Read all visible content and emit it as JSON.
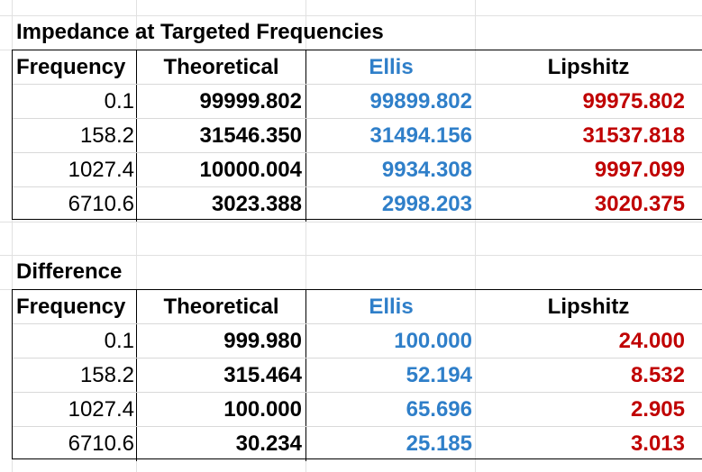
{
  "colors": {
    "ellis": "#2f7fc9",
    "lipshitz": "#c00000",
    "gridline": "#e1e1e1",
    "border": "#000000"
  },
  "tables": [
    {
      "title": "Impedance at Targeted Frequencies",
      "headers": [
        "Frequency",
        "Theoretical",
        "Ellis",
        "Lipshitz"
      ],
      "rows": [
        [
          "0.1",
          "99999.802",
          "99899.802",
          "99975.802"
        ],
        [
          "158.2",
          "31546.350",
          "31494.156",
          "31537.818"
        ],
        [
          "1027.4",
          "10000.004",
          "9934.308",
          "9997.099"
        ],
        [
          "6710.6",
          "3023.388",
          "2998.203",
          "3020.375"
        ]
      ]
    },
    {
      "title": "Difference",
      "headers": [
        "Frequency",
        "Theoretical",
        "Ellis",
        "Lipshitz"
      ],
      "rows": [
        [
          "0.1",
          "999.980",
          "100.000",
          "24.000"
        ],
        [
          "158.2",
          "315.464",
          "52.194",
          "8.532"
        ],
        [
          "1027.4",
          "100.000",
          "65.696",
          "2.905"
        ],
        [
          "6710.6",
          "30.234",
          "25.185",
          "3.013"
        ]
      ]
    }
  ]
}
